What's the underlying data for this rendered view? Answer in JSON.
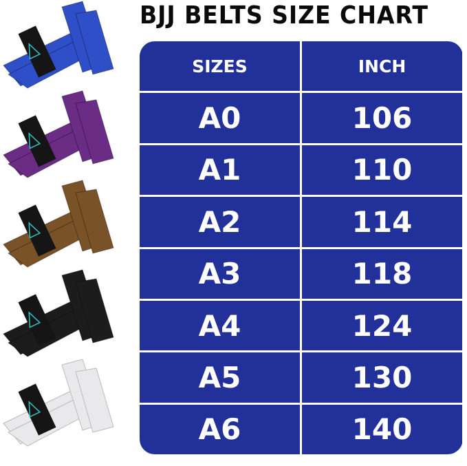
{
  "title": "BJJ BELTS SIZE CHART",
  "table": {
    "headers": [
      "SIZES",
      "INCH"
    ],
    "rows": [
      [
        "A0",
        "106"
      ],
      [
        "A1",
        "110"
      ],
      [
        "A2",
        "114"
      ],
      [
        "A3",
        "118"
      ],
      [
        "A4",
        "124"
      ],
      [
        "A5",
        "130"
      ],
      [
        "A6",
        "140"
      ]
    ]
  },
  "belts": [
    {
      "color_name": "blue",
      "color": "#2f4fc8"
    },
    {
      "color_name": "purple",
      "color": "#6a2c84"
    },
    {
      "color_name": "brown",
      "color": "#7a5228"
    },
    {
      "color_name": "black",
      "color": "#1c1c1c"
    },
    {
      "color_name": "white",
      "color": "#e9e9ec"
    }
  ],
  "colors": {
    "table_bg": "#22319a",
    "text": "#ffffff",
    "title": "#0a0a0a"
  }
}
